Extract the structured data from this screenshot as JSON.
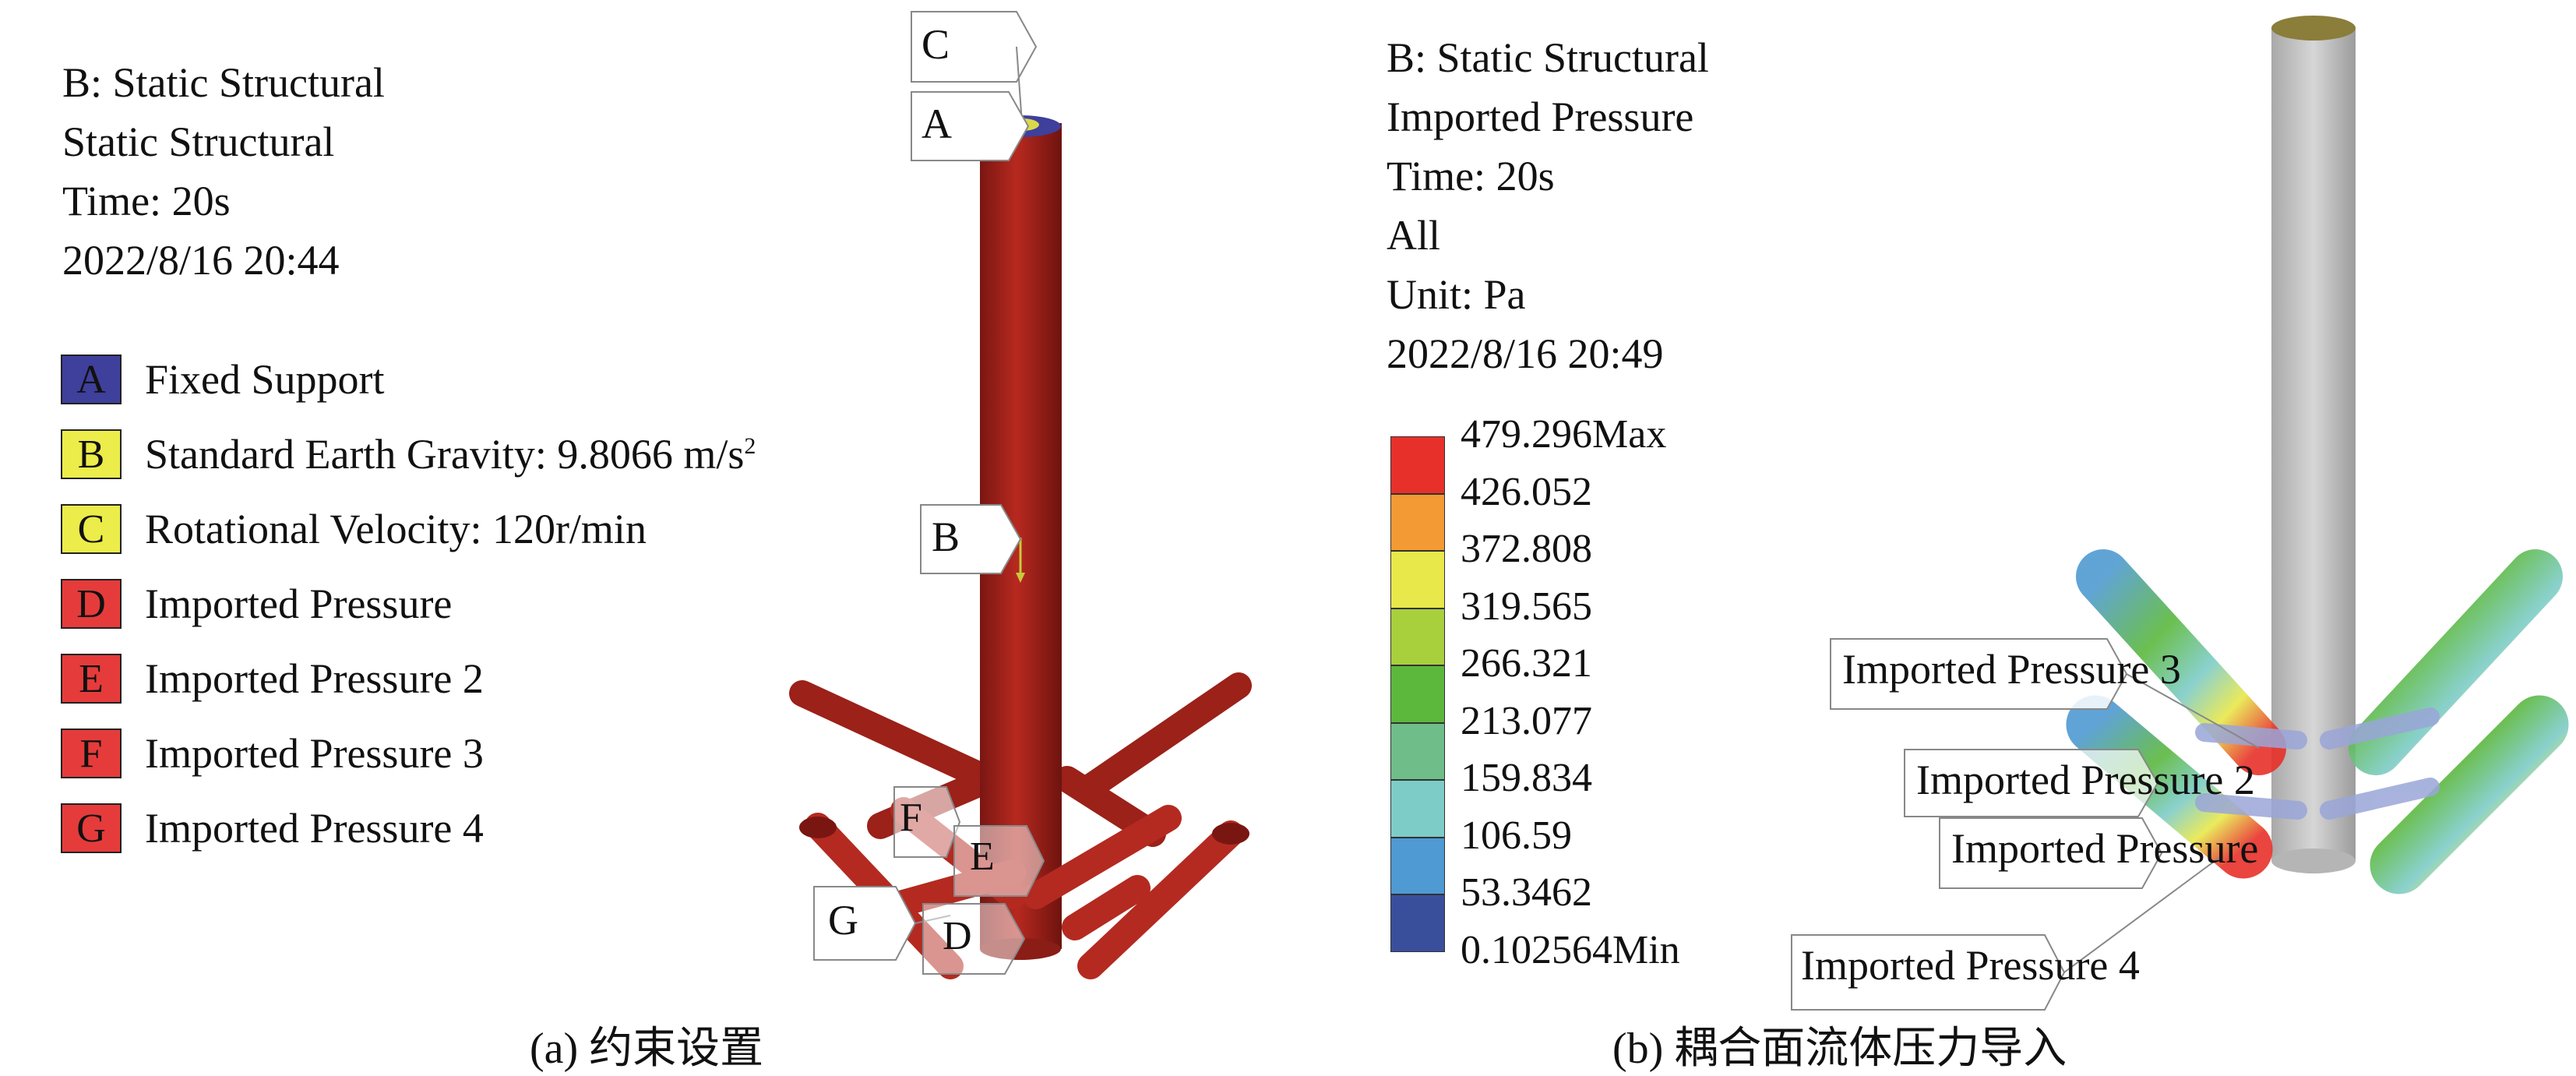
{
  "panel_a": {
    "info_lines": [
      "B: Static Structural",
      "Static Structural",
      "Time: 20s",
      "2022/8/16 20:44"
    ],
    "legend": [
      {
        "key": "A",
        "label": "Fixed Support",
        "color": "#3f3f9c"
      },
      {
        "key": "B",
        "label": "Standard Earth Gravity: 9.8066 m/s",
        "sup": "2",
        "color": "#ecec4a"
      },
      {
        "key": "C",
        "label": "Rotational Velocity: 120r/min",
        "color": "#ecec4a"
      },
      {
        "key": "D",
        "label": "Imported Pressure",
        "color": "#e53b3b"
      },
      {
        "key": "E",
        "label": "Imported Pressure 2",
        "color": "#e53b3b"
      },
      {
        "key": "F",
        "label": "Imported Pressure 3",
        "color": "#e53b3b"
      },
      {
        "key": "G",
        "label": "Imported Pressure 4",
        "color": "#e53b3b"
      }
    ],
    "callouts": [
      "C",
      "A",
      "B",
      "F",
      "E",
      "G",
      "D"
    ],
    "caption": "(a) 约束设置",
    "model_color": "#a8231c"
  },
  "panel_b": {
    "info_lines": [
      "B: Static Structural",
      "Imported Pressure",
      "Time: 20s",
      "All",
      "Unit: Pa",
      "2022/8/16 20:49"
    ],
    "scale_labels": [
      "479.296Max",
      "426.052",
      "372.808",
      "319.565",
      "266.321",
      "213.077",
      "159.834",
      "106.59",
      "53.3462",
      "0.102564Min"
    ],
    "scale_colors": [
      "#e8302a",
      "#f39a34",
      "#e8e84a",
      "#a8cf3c",
      "#5bb83c",
      "#6fbe8a",
      "#7dccc8",
      "#4f9ad2",
      "#3a4f9c"
    ],
    "callouts": [
      "Imported Pressure 3",
      "Imported Pressure 2",
      "Imported Pressure",
      "Imported Pressure 4"
    ],
    "caption": "(b) 耦合面流体压力导入",
    "shaft_color": "#c9c9c9"
  }
}
